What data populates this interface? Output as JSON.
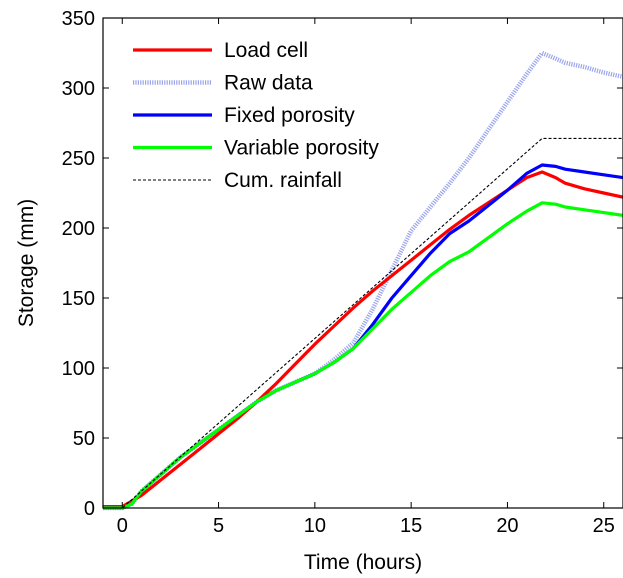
{
  "chart_data": {
    "type": "line",
    "xlabel": "Time (hours)",
    "ylabel": "Storage (mm)",
    "xlim": [
      -1,
      26
    ],
    "ylim": [
      0,
      350
    ],
    "xticks": [
      0,
      5,
      10,
      15,
      20,
      25
    ],
    "yticks": [
      0,
      50,
      100,
      150,
      200,
      250,
      300,
      350
    ],
    "grid": false,
    "legend_position": "top-left",
    "series": [
      {
        "name": "Load cell",
        "color": "#ff0000",
        "style": "solid",
        "x": [
          -1,
          0,
          1,
          2,
          3,
          4,
          5,
          6,
          7,
          8,
          9,
          10,
          11,
          12,
          13,
          14,
          15,
          16,
          17,
          18,
          19,
          20,
          21,
          21.8,
          22.5,
          23,
          24,
          25,
          26
        ],
        "y": [
          1,
          1,
          9,
          20,
          31,
          42,
          53,
          64,
          76,
          89,
          103,
          117,
          130,
          143,
          155,
          166,
          177,
          188,
          199,
          209,
          218,
          227,
          236,
          240,
          236,
          232,
          228,
          225,
          222
        ]
      },
      {
        "name": "Raw data",
        "color": "#9aa5ec",
        "style": "dotted-thick",
        "x": [
          -1,
          0,
          0.5,
          1,
          2,
          3,
          4,
          5,
          6,
          7,
          8,
          9,
          10,
          11,
          12,
          13,
          14,
          15,
          16,
          17,
          18,
          19,
          20,
          21,
          21.8,
          22.5,
          23,
          24,
          25,
          26
        ],
        "y": [
          0,
          0,
          3,
          12,
          24,
          36,
          46,
          56,
          66,
          76,
          84,
          90,
          96,
          106,
          118,
          142,
          170,
          198,
          215,
          232,
          250,
          270,
          290,
          310,
          325,
          321,
          318,
          315,
          311,
          308
        ]
      },
      {
        "name": "Fixed porosity",
        "color": "#0000ff",
        "style": "solid",
        "x": [
          -1,
          0,
          0.5,
          1,
          2,
          3,
          4,
          5,
          6,
          7,
          8,
          9,
          10,
          11,
          12,
          13,
          14,
          15,
          16,
          17,
          18,
          19,
          20,
          21,
          21.8,
          22.5,
          23,
          24,
          25,
          26
        ],
        "y": [
          0,
          0,
          3,
          12,
          24,
          36,
          46,
          56,
          66,
          76,
          84,
          90,
          96,
          104,
          114,
          131,
          150,
          166,
          182,
          196,
          205,
          216,
          227,
          239,
          245,
          244,
          242,
          240,
          238,
          236
        ]
      },
      {
        "name": "Variable porosity",
        "color": "#00ff00",
        "style": "solid",
        "x": [
          -1,
          0,
          0.5,
          1,
          2,
          3,
          4,
          5,
          6,
          7,
          8,
          9,
          10,
          11,
          12,
          13,
          14,
          15,
          16,
          17,
          18,
          19,
          20,
          21,
          21.8,
          22.5,
          23,
          24,
          25,
          26
        ],
        "y": [
          0,
          0,
          3,
          12,
          24,
          36,
          46,
          56,
          66,
          76,
          84,
          90,
          96,
          104,
          114,
          128,
          142,
          154,
          166,
          176,
          183,
          193,
          203,
          212,
          218,
          217,
          215,
          213,
          211,
          209
        ]
      },
      {
        "name": "Cum. rainfall",
        "color": "#000000",
        "style": "dashed",
        "x": [
          -1,
          0,
          21.8,
          26
        ],
        "y": [
          0,
          0,
          264,
          264
        ]
      }
    ]
  }
}
